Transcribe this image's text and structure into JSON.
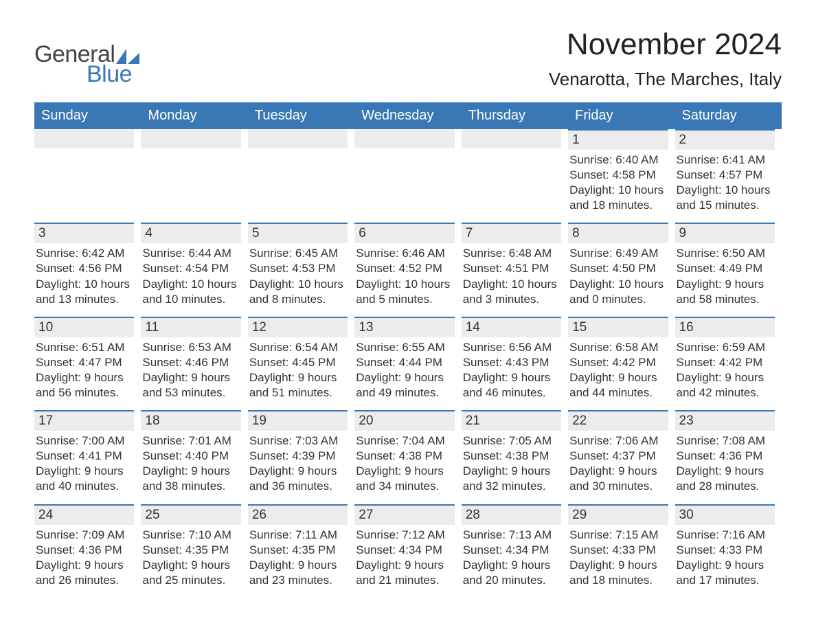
{
  "brand": {
    "part1": "General",
    "part2": "Blue",
    "brand_color": "#3a78b5"
  },
  "title": "November 2024",
  "location": "Venarotta, The Marches, Italy",
  "colors": {
    "header_bg": "#3a78b5",
    "header_text": "#ffffff",
    "daybar_bg": "#ececec",
    "daybar_border": "#3a78b5",
    "body_text": "#333333",
    "page_bg": "#ffffff"
  },
  "weekdays": [
    "Sunday",
    "Monday",
    "Tuesday",
    "Wednesday",
    "Thursday",
    "Friday",
    "Saturday"
  ],
  "weeks": [
    [
      null,
      null,
      null,
      null,
      null,
      {
        "n": "1",
        "sunrise": "6:40 AM",
        "sunset": "4:58 PM",
        "day_h": "10",
        "day_m": "18"
      },
      {
        "n": "2",
        "sunrise": "6:41 AM",
        "sunset": "4:57 PM",
        "day_h": "10",
        "day_m": "15"
      }
    ],
    [
      {
        "n": "3",
        "sunrise": "6:42 AM",
        "sunset": "4:56 PM",
        "day_h": "10",
        "day_m": "13"
      },
      {
        "n": "4",
        "sunrise": "6:44 AM",
        "sunset": "4:54 PM",
        "day_h": "10",
        "day_m": "10"
      },
      {
        "n": "5",
        "sunrise": "6:45 AM",
        "sunset": "4:53 PM",
        "day_h": "10",
        "day_m": "8"
      },
      {
        "n": "6",
        "sunrise": "6:46 AM",
        "sunset": "4:52 PM",
        "day_h": "10",
        "day_m": "5"
      },
      {
        "n": "7",
        "sunrise": "6:48 AM",
        "sunset": "4:51 PM",
        "day_h": "10",
        "day_m": "3"
      },
      {
        "n": "8",
        "sunrise": "6:49 AM",
        "sunset": "4:50 PM",
        "day_h": "10",
        "day_m": "0"
      },
      {
        "n": "9",
        "sunrise": "6:50 AM",
        "sunset": "4:49 PM",
        "day_h": "9",
        "day_m": "58"
      }
    ],
    [
      {
        "n": "10",
        "sunrise": "6:51 AM",
        "sunset": "4:47 PM",
        "day_h": "9",
        "day_m": "56"
      },
      {
        "n": "11",
        "sunrise": "6:53 AM",
        "sunset": "4:46 PM",
        "day_h": "9",
        "day_m": "53"
      },
      {
        "n": "12",
        "sunrise": "6:54 AM",
        "sunset": "4:45 PM",
        "day_h": "9",
        "day_m": "51"
      },
      {
        "n": "13",
        "sunrise": "6:55 AM",
        "sunset": "4:44 PM",
        "day_h": "9",
        "day_m": "49"
      },
      {
        "n": "14",
        "sunrise": "6:56 AM",
        "sunset": "4:43 PM",
        "day_h": "9",
        "day_m": "46"
      },
      {
        "n": "15",
        "sunrise": "6:58 AM",
        "sunset": "4:42 PM",
        "day_h": "9",
        "day_m": "44"
      },
      {
        "n": "16",
        "sunrise": "6:59 AM",
        "sunset": "4:42 PM",
        "day_h": "9",
        "day_m": "42"
      }
    ],
    [
      {
        "n": "17",
        "sunrise": "7:00 AM",
        "sunset": "4:41 PM",
        "day_h": "9",
        "day_m": "40"
      },
      {
        "n": "18",
        "sunrise": "7:01 AM",
        "sunset": "4:40 PM",
        "day_h": "9",
        "day_m": "38"
      },
      {
        "n": "19",
        "sunrise": "7:03 AM",
        "sunset": "4:39 PM",
        "day_h": "9",
        "day_m": "36"
      },
      {
        "n": "20",
        "sunrise": "7:04 AM",
        "sunset": "4:38 PM",
        "day_h": "9",
        "day_m": "34"
      },
      {
        "n": "21",
        "sunrise": "7:05 AM",
        "sunset": "4:38 PM",
        "day_h": "9",
        "day_m": "32"
      },
      {
        "n": "22",
        "sunrise": "7:06 AM",
        "sunset": "4:37 PM",
        "day_h": "9",
        "day_m": "30"
      },
      {
        "n": "23",
        "sunrise": "7:08 AM",
        "sunset": "4:36 PM",
        "day_h": "9",
        "day_m": "28"
      }
    ],
    [
      {
        "n": "24",
        "sunrise": "7:09 AM",
        "sunset": "4:36 PM",
        "day_h": "9",
        "day_m": "26"
      },
      {
        "n": "25",
        "sunrise": "7:10 AM",
        "sunset": "4:35 PM",
        "day_h": "9",
        "day_m": "25"
      },
      {
        "n": "26",
        "sunrise": "7:11 AM",
        "sunset": "4:35 PM",
        "day_h": "9",
        "day_m": "23"
      },
      {
        "n": "27",
        "sunrise": "7:12 AM",
        "sunset": "4:34 PM",
        "day_h": "9",
        "day_m": "21"
      },
      {
        "n": "28",
        "sunrise": "7:13 AM",
        "sunset": "4:34 PM",
        "day_h": "9",
        "day_m": "20"
      },
      {
        "n": "29",
        "sunrise": "7:15 AM",
        "sunset": "4:33 PM",
        "day_h": "9",
        "day_m": "18"
      },
      {
        "n": "30",
        "sunrise": "7:16 AM",
        "sunset": "4:33 PM",
        "day_h": "9",
        "day_m": "17"
      }
    ]
  ],
  "labels": {
    "sunrise": "Sunrise:",
    "sunset": "Sunset:",
    "daylight": "Daylight:",
    "hours": "hours",
    "and": "and",
    "minutes": "minutes."
  }
}
